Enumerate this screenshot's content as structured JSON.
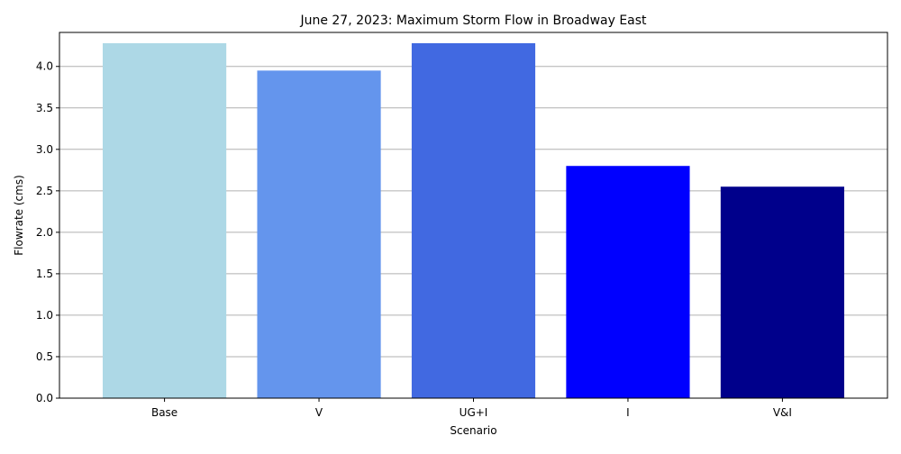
{
  "chart_data": {
    "type": "bar",
    "title": "June 27, 2023: Maximum Storm Flow in Broadway East",
    "xlabel": "Scenario",
    "ylabel": "Flowrate (cms)",
    "categories": [
      "Base",
      "V",
      "UG+I",
      "I",
      "V&I"
    ],
    "values": [
      4.28,
      3.95,
      4.28,
      2.8,
      2.55
    ],
    "colors": [
      "#add8e6",
      "#6495ed",
      "#4169e1",
      "#0000ff",
      "#00008b"
    ],
    "ylim": [
      0,
      4.41
    ],
    "yticks": [
      0.0,
      0.5,
      1.0,
      1.5,
      2.0,
      2.5,
      3.0,
      3.5,
      4.0
    ],
    "ytick_labels": [
      "0.0",
      "0.5",
      "1.0",
      "1.5",
      "2.0",
      "2.5",
      "3.0",
      "3.5",
      "4.0"
    ],
    "grid": {
      "y": true,
      "x": false,
      "color": "#b0b0b0"
    },
    "legend": "none"
  }
}
